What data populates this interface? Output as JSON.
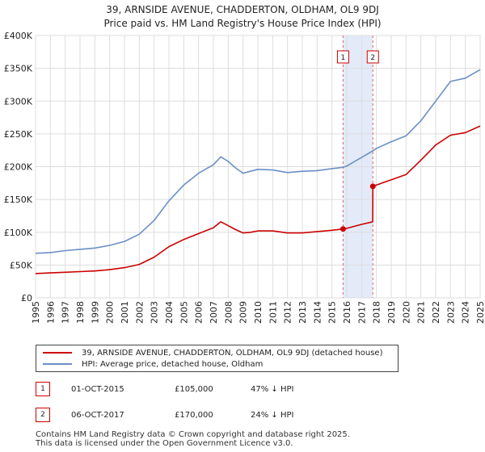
{
  "header": {
    "title_line1": "39, ARNSIDE AVENUE, CHADDERTON, OLDHAM, OL9 9DJ",
    "title_line2": "Price paid vs. HM Land Registry's House Price Index (HPI)"
  },
  "chart_data": {
    "type": "line",
    "title": "39, ARNSIDE AVENUE, CHADDERTON, OLDHAM, OL9 9DJ — Price paid vs. HM Land Registry's House Price Index (HPI)",
    "xlabel": "",
    "ylabel": "",
    "xlim": [
      1995,
      2025
    ],
    "ylim": [
      0,
      400000
    ],
    "grid": true,
    "x_ticks": [
      1995,
      1996,
      1997,
      1998,
      1999,
      2000,
      2001,
      2002,
      2003,
      2004,
      2005,
      2006,
      2007,
      2008,
      2009,
      2010,
      2011,
      2012,
      2013,
      2014,
      2015,
      2016,
      2017,
      2018,
      2019,
      2020,
      2021,
      2022,
      2023,
      2024,
      2025
    ],
    "y_ticks": [
      {
        "value": 0,
        "label": "£0"
      },
      {
        "value": 50000,
        "label": "£50K"
      },
      {
        "value": 100000,
        "label": "£100K"
      },
      {
        "value": 150000,
        "label": "£150K"
      },
      {
        "value": 200000,
        "label": "£200K"
      },
      {
        "value": 250000,
        "label": "£250K"
      },
      {
        "value": 300000,
        "label": "£300K"
      },
      {
        "value": 350000,
        "label": "£350K"
      },
      {
        "value": 400000,
        "label": "£400K"
      }
    ],
    "series": [
      {
        "name": "HPI: Average price, detached house, Oldham",
        "color": "#6b8fc7",
        "x": [
          1995,
          1996,
          1997,
          1998,
          1999,
          2000,
          2001,
          2002,
          2003,
          2004,
          2005,
          2006,
          2007,
          2007.5,
          2008,
          2008.5,
          2009,
          2009.5,
          2010,
          2011,
          2012,
          2013,
          2014,
          2015,
          2015.75,
          2016,
          2017,
          2017.75,
          2018,
          2019,
          2020,
          2021,
          2022,
          2023,
          2024,
          2025
        ],
        "values": [
          68000,
          69000,
          72000,
          74000,
          76000,
          80000,
          86000,
          97000,
          118000,
          148000,
          172000,
          190000,
          203000,
          215000,
          208000,
          198000,
          190000,
          193000,
          196000,
          195000,
          191000,
          193000,
          194000,
          197000,
          199000,
          201000,
          214000,
          224000,
          228000,
          238000,
          247000,
          270000,
          300000,
          330000,
          335000,
          348000
        ]
      },
      {
        "name": "39, ARNSIDE AVENUE, CHADDERTON, OLDHAM, OL9 9DJ (detached house)",
        "color": "#cc0000",
        "x": [
          1995,
          1996,
          1997,
          1998,
          1999,
          2000,
          2001,
          2002,
          2003,
          2004,
          2005,
          2006,
          2007,
          2007.5,
          2008,
          2008.5,
          2009,
          2009.5,
          2010,
          2011,
          2012,
          2013,
          2014,
          2015,
          2015.75,
          2016,
          2017,
          2017.75,
          2017.76,
          2018,
          2019,
          2020,
          2021,
          2022,
          2023,
          2024,
          2025
        ],
        "values": [
          37000,
          38000,
          39000,
          40000,
          41000,
          43000,
          46000,
          51000,
          62000,
          78000,
          89000,
          98000,
          107000,
          116000,
          110000,
          104000,
          99000,
          100000,
          102000,
          102000,
          99000,
          99000,
          101000,
          103000,
          105000,
          106000,
          112000,
          116000,
          170000,
          172000,
          180000,
          188000,
          210000,
          233000,
          248000,
          252000,
          262000
        ]
      }
    ],
    "markers": [
      {
        "id": "1",
        "x": 2015.75,
        "value": 105000,
        "band_end": 2017.75
      },
      {
        "id": "2",
        "x": 2017.76,
        "value": 170000
      }
    ],
    "legend_position": "below"
  },
  "legend": {
    "items": [
      {
        "label": "39, ARNSIDE AVENUE, CHADDERTON, OLDHAM, OL9 9DJ (detached house)",
        "color": "#cc0000"
      },
      {
        "label": "HPI: Average price, detached house, Oldham",
        "color": "#6b8fc7"
      }
    ]
  },
  "sales": [
    {
      "badge": "1",
      "date": "01-OCT-2015",
      "price": "£105,000",
      "hpi": "47% ↓ HPI"
    },
    {
      "badge": "2",
      "date": "06-OCT-2017",
      "price": "£170,000",
      "hpi": "24% ↓ HPI"
    }
  ],
  "footer": {
    "line1": "Contains HM Land Registry data © Crown copyright and database right 2025.",
    "line2": "This data is licensed under the Open Government Licence v3.0."
  }
}
